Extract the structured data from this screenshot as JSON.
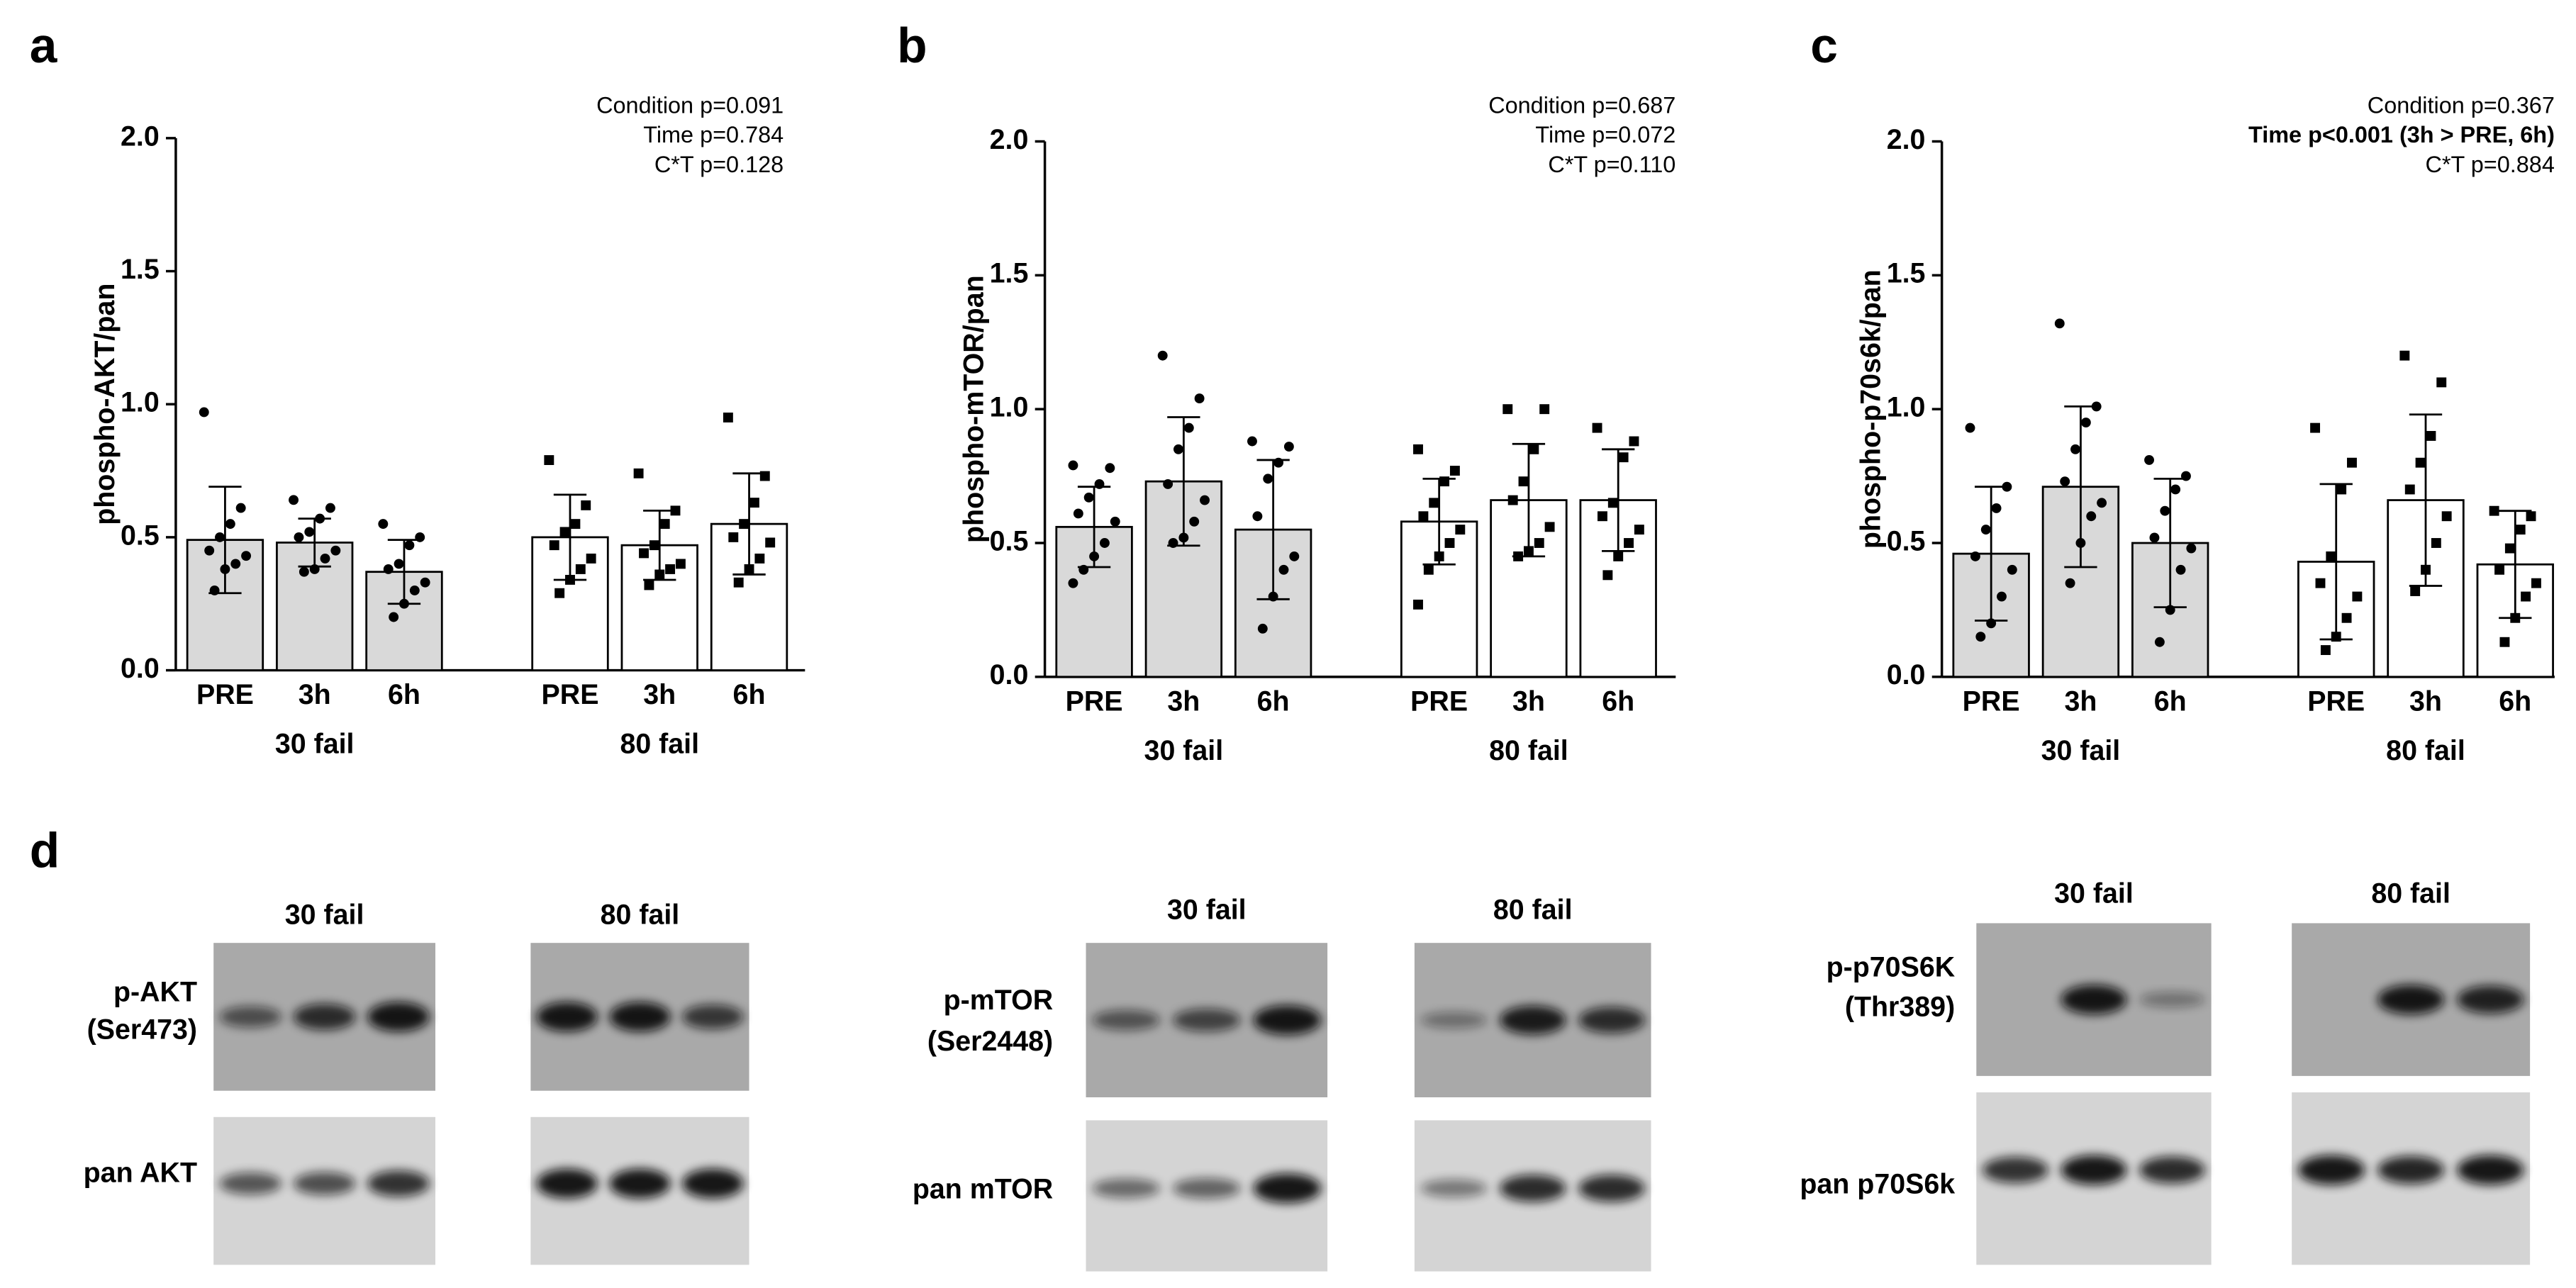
{
  "chart_data": [
    {
      "type": "bar",
      "panel_label": "a",
      "y_label": "phospho-AKT/pan",
      "annotations": [
        {
          "text": "Condition p=0.091"
        },
        {
          "text": "Time p=0.784"
        },
        {
          "text": "C*T p=0.128"
        }
      ],
      "categories": [
        "PRE",
        "3h",
        "6h",
        "PRE",
        "3h",
        "6h"
      ],
      "group_labels": [
        "30 fail",
        "80 fail"
      ],
      "colors": [
        "#d9d9d9",
        "#ffffff"
      ],
      "markers": [
        "circle",
        "square"
      ],
      "values": [
        0.49,
        0.48,
        0.37,
        0.5,
        0.47,
        0.55
      ],
      "errors": [
        0.2,
        0.09,
        0.12,
        0.16,
        0.13,
        0.19
      ],
      "points": [
        [
          0.97,
          0.61,
          0.55,
          0.5,
          0.45,
          0.43,
          0.4,
          0.38,
          0.3
        ],
        [
          0.64,
          0.61,
          0.57,
          0.52,
          0.5,
          0.45,
          0.42,
          0.38,
          0.37
        ],
        [
          0.55,
          0.5,
          0.47,
          0.4,
          0.38,
          0.33,
          0.3,
          0.25,
          0.2
        ],
        [
          0.79,
          0.62,
          0.55,
          0.52,
          0.47,
          0.42,
          0.38,
          0.34,
          0.29
        ],
        [
          0.74,
          0.6,
          0.55,
          0.47,
          0.44,
          0.4,
          0.38,
          0.36,
          0.32
        ],
        [
          0.95,
          0.73,
          0.63,
          0.55,
          0.5,
          0.48,
          0.42,
          0.38,
          0.33
        ]
      ],
      "ylim": [
        0,
        2
      ],
      "yticks": [
        {
          "value": 0,
          "label": "0.0"
        },
        {
          "value": 0.5,
          "label": "0.5"
        },
        {
          "value": 1,
          "label": "1.0"
        },
        {
          "value": 1.5,
          "label": "1.5"
        },
        {
          "value": 2,
          "label": "2.0"
        }
      ]
    },
    {
      "type": "bar",
      "panel_label": "b",
      "y_label": "phospho-mTOR/pan",
      "annotations": [
        {
          "text": "Condition p=0.687"
        },
        {
          "text": "Time p=0.072"
        },
        {
          "text": "C*T p=0.110"
        }
      ],
      "categories": [
        "PRE",
        "3h",
        "6h",
        "PRE",
        "3h",
        "6h"
      ],
      "group_labels": [
        "30 fail",
        "80 fail"
      ],
      "colors": [
        "#d9d9d9",
        "#ffffff"
      ],
      "markers": [
        "circle",
        "square"
      ],
      "values": [
        0.56,
        0.73,
        0.55,
        0.58,
        0.66,
        0.66
      ],
      "errors": [
        0.15,
        0.24,
        0.26,
        0.16,
        0.21,
        0.19
      ],
      "points": [
        [
          0.79,
          0.78,
          0.72,
          0.67,
          0.61,
          0.58,
          0.5,
          0.45,
          0.4,
          0.35
        ],
        [
          1.2,
          1.04,
          0.93,
          0.85,
          0.72,
          0.66,
          0.58,
          0.52,
          0.5
        ],
        [
          0.88,
          0.86,
          0.8,
          0.74,
          0.6,
          0.45,
          0.4,
          0.3,
          0.18
        ],
        [
          0.85,
          0.77,
          0.73,
          0.65,
          0.6,
          0.55,
          0.5,
          0.45,
          0.4,
          0.27
        ],
        [
          1.0,
          1.0,
          0.85,
          0.73,
          0.66,
          0.56,
          0.5,
          0.47,
          0.45
        ],
        [
          0.93,
          0.88,
          0.82,
          0.65,
          0.6,
          0.55,
          0.5,
          0.45,
          0.38
        ]
      ],
      "ylim": [
        0,
        2
      ],
      "yticks": [
        {
          "value": 0,
          "label": "0.0"
        },
        {
          "value": 0.5,
          "label": "0.5"
        },
        {
          "value": 1,
          "label": "1.0"
        },
        {
          "value": 1.5,
          "label": "1.5"
        },
        {
          "value": 2,
          "label": "2.0"
        }
      ]
    },
    {
      "type": "bar",
      "panel_label": "c",
      "y_label": "phospho-p70s6k/pan",
      "annotations": [
        {
          "text": "Condition p=0.367"
        },
        {
          "text": "Time p<0.001 (3h > PRE, 6h)",
          "bold": true
        },
        {
          "text": "C*T p=0.884"
        }
      ],
      "categories": [
        "PRE",
        "3h",
        "6h",
        "PRE",
        "3h",
        "6h"
      ],
      "group_labels": [
        "30 fail",
        "80 fail"
      ],
      "colors": [
        "#d9d9d9",
        "#ffffff"
      ],
      "markers": [
        "circle",
        "square"
      ],
      "values": [
        0.46,
        0.71,
        0.5,
        0.43,
        0.66,
        0.42
      ],
      "errors": [
        0.25,
        0.3,
        0.24,
        0.29,
        0.32,
        0.2
      ],
      "points": [
        [
          0.93,
          0.71,
          0.63,
          0.55,
          0.45,
          0.4,
          0.3,
          0.2,
          0.15
        ],
        [
          1.32,
          1.01,
          0.95,
          0.85,
          0.73,
          0.65,
          0.6,
          0.5,
          0.35
        ],
        [
          0.81,
          0.75,
          0.7,
          0.62,
          0.52,
          0.48,
          0.4,
          0.25,
          0.13
        ],
        [
          0.93,
          0.8,
          0.7,
          0.45,
          0.35,
          0.3,
          0.22,
          0.15,
          0.1
        ],
        [
          1.2,
          1.1,
          0.9,
          0.8,
          0.7,
          0.6,
          0.5,
          0.4,
          0.32
        ],
        [
          0.62,
          0.6,
          0.55,
          0.48,
          0.4,
          0.35,
          0.3,
          0.22,
          0.13
        ]
      ],
      "ylim": [
        0,
        2
      ],
      "yticks": [
        {
          "value": 0,
          "label": "0.0"
        },
        {
          "value": 0.5,
          "label": "0.5"
        },
        {
          "value": 1,
          "label": "1.0"
        },
        {
          "value": 1.5,
          "label": "1.5"
        },
        {
          "value": 2,
          "label": "2.0"
        }
      ]
    }
  ],
  "blot_label": "d",
  "blots": [
    {
      "groups": [
        "30 fail",
        "80 fail"
      ],
      "rows": [
        [
          "p-AKT",
          "(Ser473)"
        ],
        [
          "pan AKT"
        ]
      ]
    },
    {
      "groups": [
        "30 fail",
        "80 fail"
      ],
      "rows": [
        [
          "p-mTOR",
          "(Ser2448)"
        ],
        [
          "pan mTOR"
        ]
      ]
    },
    {
      "groups": [
        "30 fail",
        "80 fail"
      ],
      "rows": [
        [
          "p-p70S6K",
          "(Thr389)"
        ],
        [
          "pan p70S6k"
        ]
      ]
    }
  ]
}
